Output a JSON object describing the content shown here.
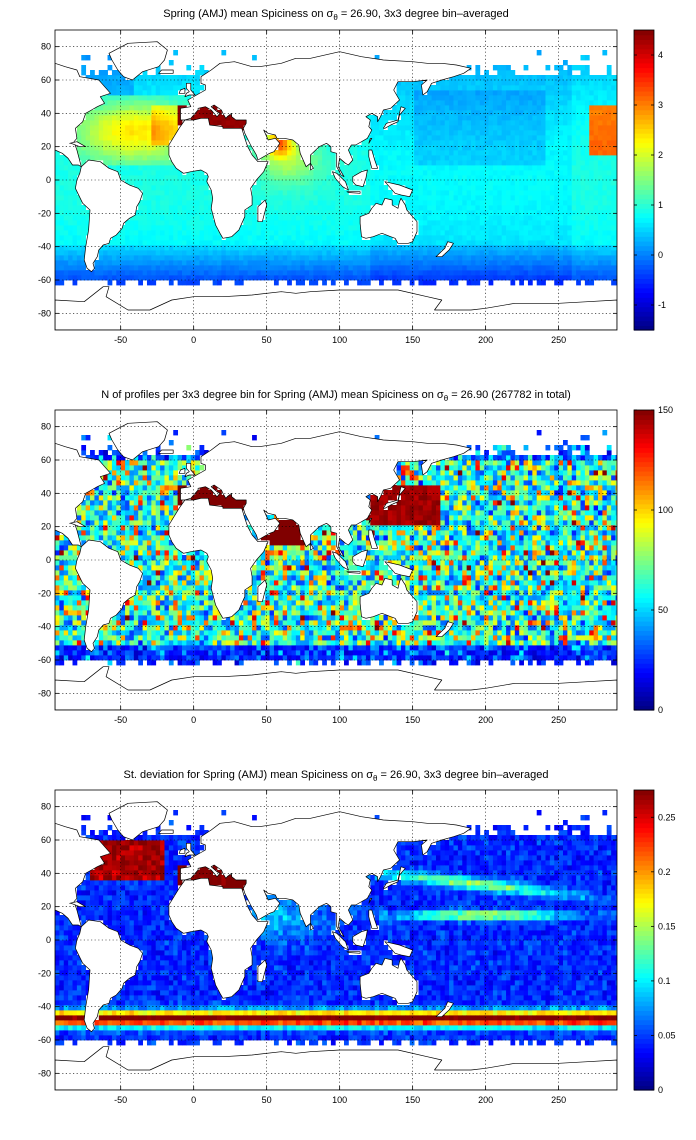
{
  "chart_data": [
    {
      "type": "heatmap",
      "title": "Spring (AMJ) mean Spiciness on σ",
      "title_sub": "θ",
      "title_rest": " = 26.90, 3x3 degree bin–averaged",
      "xlim": [
        -95,
        290
      ],
      "ylim": [
        -90,
        90
      ],
      "xticks": [
        -50,
        0,
        50,
        100,
        150,
        200,
        250
      ],
      "yticks": [
        -80,
        -60,
        -40,
        -20,
        0,
        20,
        40,
        60,
        80
      ],
      "colorbar": {
        "min": -1.5,
        "max": 4.5,
        "ticks": [
          -1,
          0,
          1,
          2,
          3,
          4
        ],
        "tick_labels": [
          "-1",
          "0",
          "1",
          "2",
          "3",
          "4"
        ]
      },
      "field": "spice",
      "grid": true
    },
    {
      "type": "heatmap",
      "title": "N of profiles per 3x3 degree bin for Spring (AMJ) mean Spiciness on σ",
      "title_sub": "θ",
      "title_rest": " = 26.90 (267782 in total)",
      "total_profiles": 267782,
      "xlim": [
        -95,
        290
      ],
      "ylim": [
        -90,
        90
      ],
      "xticks": [
        -50,
        0,
        50,
        100,
        150,
        200,
        250
      ],
      "yticks": [
        -80,
        -60,
        -40,
        -20,
        0,
        20,
        40,
        60,
        80
      ],
      "colorbar": {
        "min": 0,
        "max": 150,
        "ticks": [
          0,
          50,
          100,
          150
        ],
        "tick_labels": [
          "0",
          "50",
          "100",
          "150"
        ]
      },
      "field": "count",
      "grid": true
    },
    {
      "type": "heatmap",
      "title": "St. deviation for Spring (AMJ) mean Spiciness on σ",
      "title_sub": "θ",
      "title_rest": " = 26.90, 3x3 degree bin–averaged",
      "xlim": [
        -95,
        290
      ],
      "ylim": [
        -90,
        90
      ],
      "xticks": [
        -50,
        0,
        50,
        100,
        150,
        200,
        250
      ],
      "yticks": [
        -80,
        -60,
        -40,
        -20,
        0,
        20,
        40,
        60,
        80
      ],
      "colorbar": {
        "min": 0,
        "max": 0.275,
        "ticks": [
          0,
          0.05,
          0.1,
          0.15,
          0.2,
          0.25
        ],
        "tick_labels": [
          "0",
          "0.05",
          "0.1",
          "0.15",
          "0.2",
          "0.25"
        ]
      },
      "field": "std",
      "grid": true
    }
  ],
  "colormap": "jet",
  "land_color": "#ffffff"
}
